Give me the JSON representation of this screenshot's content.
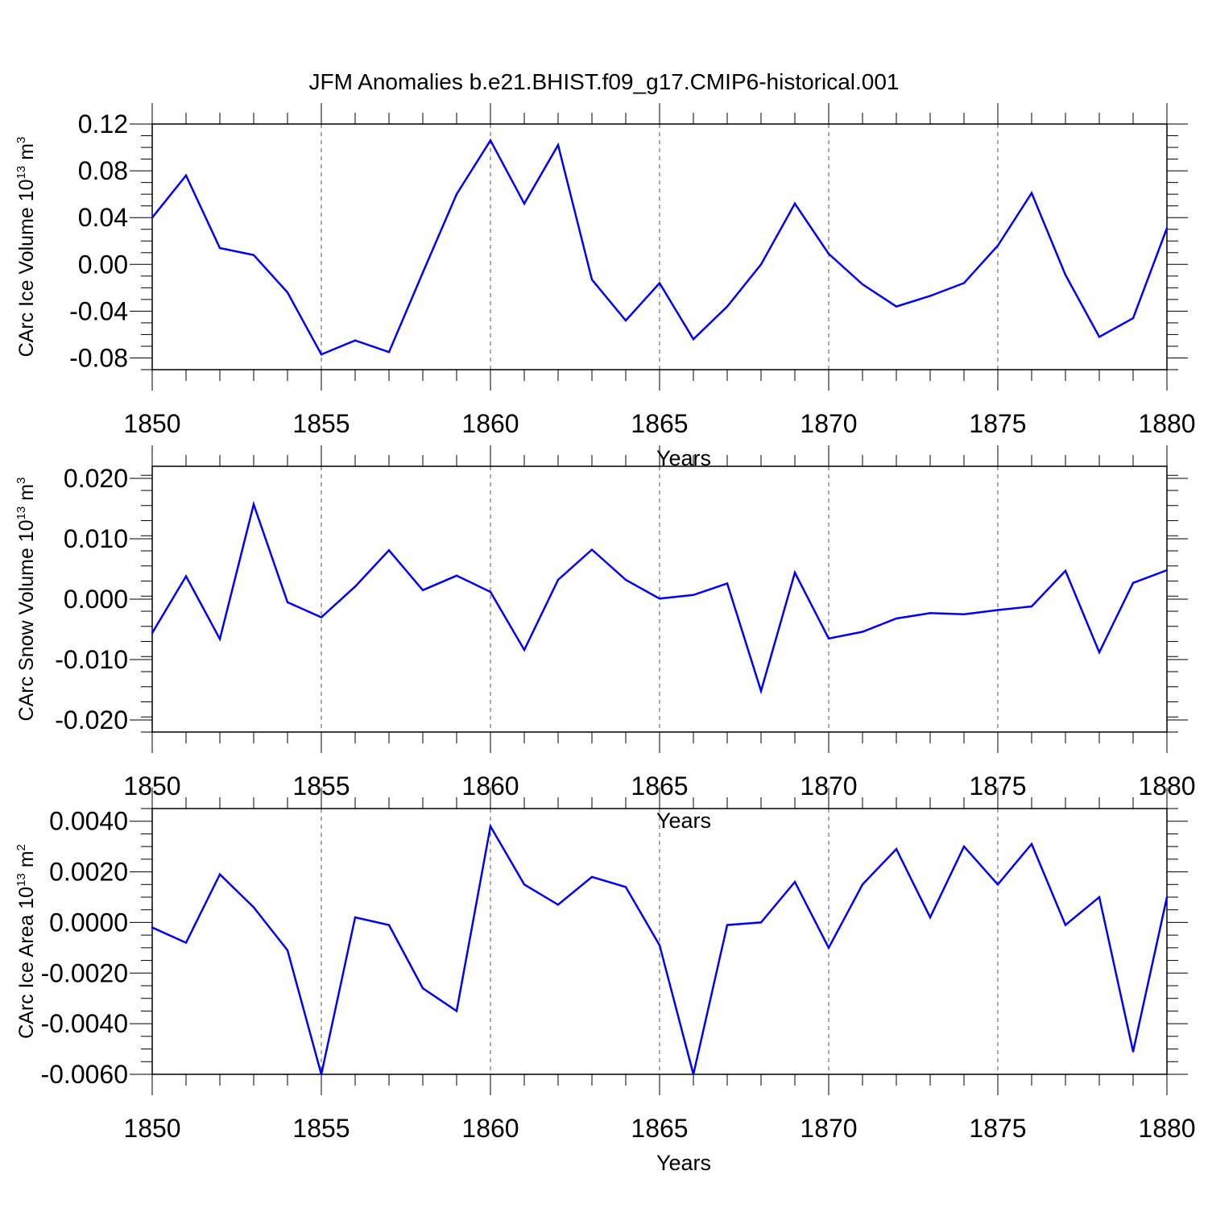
{
  "figure": {
    "title": "JFM Anomalies b.e21.BHIST.f09_g17.CMIP6-historical.001"
  },
  "chart_data": [
    {
      "type": "line",
      "title": "",
      "xlabel": "Years",
      "ylabel": "CArc Ice Volume 10",
      "ylabel_exp": "13",
      "ylabel_unit": "m",
      "ylabel_unit_exp": "3",
      "xlim": [
        1850,
        1880
      ],
      "ylim": [
        -0.09,
        0.12
      ],
      "xticks": [
        "1850",
        "1855",
        "1860",
        "1865",
        "1870",
        "1875",
        "1880"
      ],
      "yticks": [
        {
          "value": 0.12,
          "label": "0.12"
        },
        {
          "value": 0.08,
          "label": "0.08"
        },
        {
          "value": 0.04,
          "label": "0.04"
        },
        {
          "value": 0.0,
          "label": "0.00"
        },
        {
          "value": -0.04,
          "label": "-0.04"
        },
        {
          "value": -0.08,
          "label": "-0.08"
        }
      ],
      "grid": "dashed vertical at major x ticks",
      "series": [
        {
          "name": "CArc Ice Volume",
          "color": "#0000ff",
          "x": [
            1850,
            1851,
            1852,
            1853,
            1854,
            1855,
            1856,
            1857,
            1858,
            1859,
            1860,
            1861,
            1862,
            1863,
            1864,
            1865,
            1866,
            1867,
            1868,
            1869,
            1870,
            1871,
            1872,
            1873,
            1874,
            1875,
            1876,
            1877,
            1878,
            1879,
            1880
          ],
          "values": [
            0.04,
            0.076,
            0.014,
            0.008,
            -0.024,
            -0.077,
            -0.065,
            -0.075,
            -0.007,
            0.06,
            0.106,
            0.052,
            0.102,
            -0.013,
            -0.048,
            -0.016,
            -0.064,
            -0.036,
            0.0,
            0.052,
            0.009,
            -0.017,
            -0.036,
            -0.027,
            -0.016,
            0.016,
            0.061,
            -0.009,
            -0.062,
            -0.046,
            0.031
          ]
        }
      ]
    },
    {
      "type": "line",
      "title": "",
      "xlabel": "Years",
      "ylabel": "CArc Snow Volume 10",
      "ylabel_exp": "13",
      "ylabel_unit": "m",
      "ylabel_unit_exp": "3",
      "xlim": [
        1850,
        1880
      ],
      "ylim": [
        -0.022,
        0.022
      ],
      "xticks": [
        "1850",
        "1855",
        "1860",
        "1865",
        "1870",
        "1875",
        "1880"
      ],
      "yticks": [
        {
          "value": 0.02,
          "label": "0.020"
        },
        {
          "value": 0.01,
          "label": "0.010"
        },
        {
          "value": 0.0,
          "label": "0.000"
        },
        {
          "value": -0.01,
          "label": "-0.010"
        },
        {
          "value": -0.02,
          "label": "-0.020"
        }
      ],
      "grid": "dashed vertical at major x ticks",
      "series": [
        {
          "name": "CArc Snow Volume",
          "color": "#0000ff",
          "x": [
            1850,
            1851,
            1852,
            1853,
            1854,
            1855,
            1856,
            1857,
            1858,
            1859,
            1860,
            1861,
            1862,
            1863,
            1864,
            1865,
            1866,
            1867,
            1868,
            1869,
            1870,
            1871,
            1872,
            1873,
            1874,
            1875,
            1876,
            1877,
            1878,
            1879,
            1880
          ],
          "values": [
            -0.0056,
            0.0038,
            -0.0066,
            0.0157,
            -0.0005,
            -0.003,
            0.0021,
            0.0081,
            0.0015,
            0.0039,
            0.0012,
            -0.0084,
            0.0032,
            0.0082,
            0.0032,
            0.0001,
            0.0007,
            0.0026,
            -0.0152,
            0.0044,
            -0.0065,
            -0.0054,
            -0.0032,
            -0.0023,
            -0.0025,
            -0.0018,
            -0.0012,
            0.0047,
            -0.0088,
            0.0027,
            0.0048
          ]
        }
      ]
    },
    {
      "type": "line",
      "title": "",
      "xlabel": "Years",
      "ylabel": "CArc Ice Area 10",
      "ylabel_exp": "13",
      "ylabel_unit": "m",
      "ylabel_unit_exp": "2",
      "xlim": [
        1850,
        1880
      ],
      "ylim": [
        -0.006,
        0.0045
      ],
      "xticks": [
        "1850",
        "1855",
        "1860",
        "1865",
        "1870",
        "1875",
        "1880"
      ],
      "yticks": [
        {
          "value": 0.004,
          "label": "0.0040"
        },
        {
          "value": 0.002,
          "label": "0.0020"
        },
        {
          "value": 0.0,
          "label": "0.0000"
        },
        {
          "value": -0.002,
          "label": "-0.0020"
        },
        {
          "value": -0.004,
          "label": "-0.0040"
        },
        {
          "value": -0.006,
          "label": "-0.0060"
        }
      ],
      "grid": "dashed vertical at major x ticks",
      "series": [
        {
          "name": "CArc Ice Area",
          "color": "#0000ff",
          "x": [
            1850,
            1851,
            1852,
            1853,
            1854,
            1855,
            1856,
            1857,
            1858,
            1859,
            1860,
            1861,
            1862,
            1863,
            1864,
            1865,
            1866,
            1867,
            1868,
            1869,
            1870,
            1871,
            1872,
            1873,
            1874,
            1875,
            1876,
            1877,
            1878,
            1879,
            1880
          ],
          "values": [
            -0.0002,
            -0.0008,
            0.0019,
            0.0006,
            -0.0011,
            -0.006,
            0.0002,
            -0.0001,
            -0.0026,
            -0.0035,
            0.0038,
            0.0015,
            0.0007,
            0.0018,
            0.0014,
            -0.0009,
            -0.006,
            -0.0001,
            0.0,
            0.0016,
            -0.001,
            0.0015,
            0.0029,
            0.0002,
            0.003,
            0.0015,
            0.0031,
            -0.0001,
            0.001,
            -0.0051,
            0.001
          ]
        }
      ]
    }
  ]
}
